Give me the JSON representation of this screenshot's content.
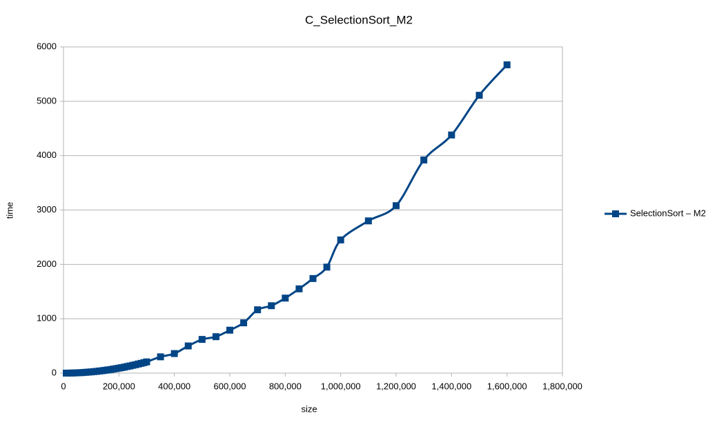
{
  "chart_data": {
    "type": "line",
    "title": "C_SelectionSort_M2",
    "x_label": "size",
    "y_label": "time",
    "x": [
      10000,
      20000,
      30000,
      40000,
      50000,
      60000,
      70000,
      80000,
      90000,
      100000,
      110000,
      120000,
      130000,
      140000,
      150000,
      160000,
      170000,
      180000,
      190000,
      200000,
      210000,
      220000,
      230000,
      240000,
      250000,
      260000,
      270000,
      280000,
      290000,
      300000,
      350000,
      400000,
      450000,
      500000,
      550000,
      600000,
      650000,
      700000,
      750000,
      800000,
      850000,
      900000,
      950000,
      1000000,
      1100000,
      1200000,
      1300000,
      1400000,
      1500000,
      1600000
    ],
    "series": [
      {
        "name": "SelectionSort – M2",
        "color": "#004586",
        "values": [
          0.23,
          0.9,
          2.1,
          3.7,
          5.8,
          8.3,
          11,
          15,
          19,
          23,
          28,
          33,
          39,
          45,
          52,
          59,
          66,
          75,
          83,
          92,
          101,
          111,
          122,
          132,
          144,
          155,
          168,
          180,
          193,
          207,
          300,
          360,
          500,
          620,
          670,
          790,
          925,
          1165,
          1240,
          1380,
          1550,
          1740,
          1950,
          2450,
          2800,
          3080,
          3920,
          4380,
          5110,
          5670
        ]
      }
    ],
    "xlim": [
      0,
      1800000
    ],
    "xticks": [
      0,
      {
        "value": 200000,
        "label": "200,000"
      },
      {
        "value": 400000,
        "label": "400,000"
      },
      {
        "value": 600000,
        "label": "600,000"
      },
      {
        "value": 800000,
        "label": "800,000"
      },
      {
        "value": 1000000,
        "label": "1,000,000"
      },
      {
        "value": 1200000,
        "label": "1,200,000"
      },
      {
        "value": 1400000,
        "label": "1,400,000"
      },
      {
        "value": 1600000,
        "label": "1,600,000"
      },
      {
        "value": 1800000,
        "label": "1,800,000"
      }
    ],
    "ylim": [
      0,
      6000
    ],
    "yticks": [
      0,
      1000,
      2000,
      3000,
      4000,
      5000,
      6000
    ],
    "grid": true,
    "smooth": true,
    "legend": "right"
  }
}
